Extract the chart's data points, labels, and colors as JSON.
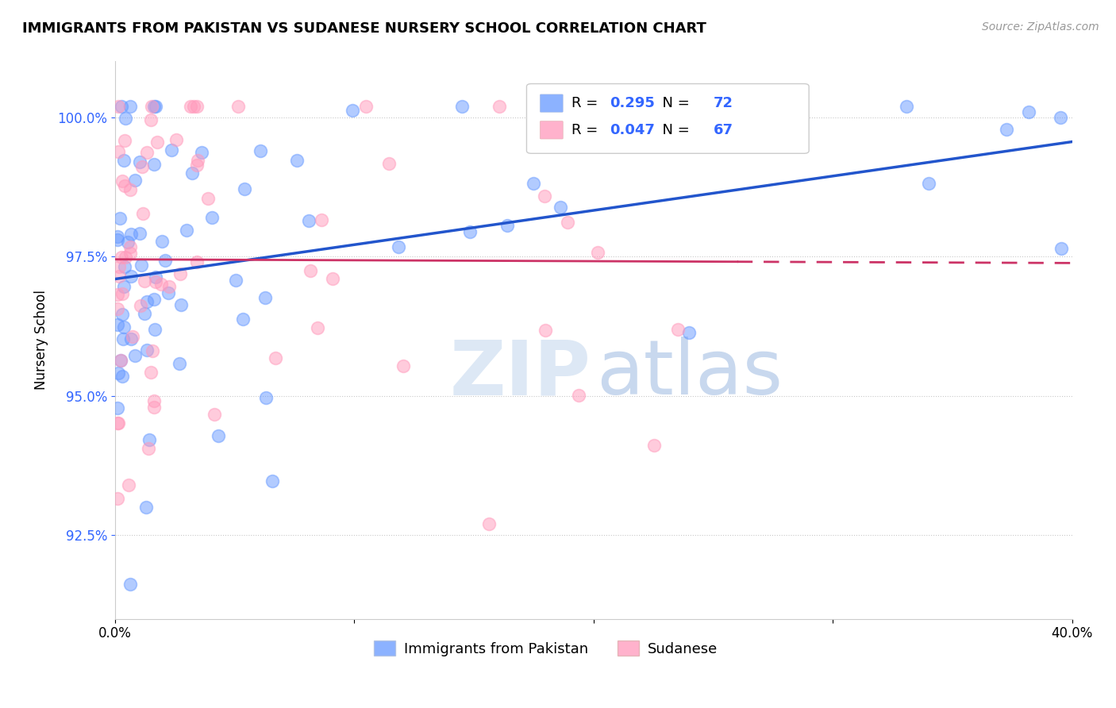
{
  "title": "IMMIGRANTS FROM PAKISTAN VS SUDANESE NURSERY SCHOOL CORRELATION CHART",
  "source": "Source: ZipAtlas.com",
  "ylabel": "Nursery School",
  "xlim": [
    0.0,
    0.4
  ],
  "ylim": [
    0.91,
    1.01
  ],
  "xticks": [
    0.0,
    0.1,
    0.2,
    0.3,
    0.4
  ],
  "xticklabels": [
    "0.0%",
    "",
    "",
    "",
    "40.0%"
  ],
  "yticks": [
    0.925,
    0.95,
    0.975,
    1.0
  ],
  "yticklabels": [
    "92.5%",
    "95.0%",
    "97.5%",
    "100.0%"
  ],
  "blue_color": "#6699ff",
  "pink_color": "#ff99bb",
  "blue_line_color": "#2255cc",
  "pink_line_color": "#cc3366",
  "blue_R": 0.295,
  "blue_N": 72,
  "pink_R": 0.047,
  "pink_N": 67,
  "legend_label_blue": "Immigrants from Pakistan",
  "legend_label_pink": "Sudanese",
  "r_n_color": "#3366ff",
  "watermark_zip_color": "#dde8f5",
  "watermark_atlas_color": "#c8d8ee"
}
